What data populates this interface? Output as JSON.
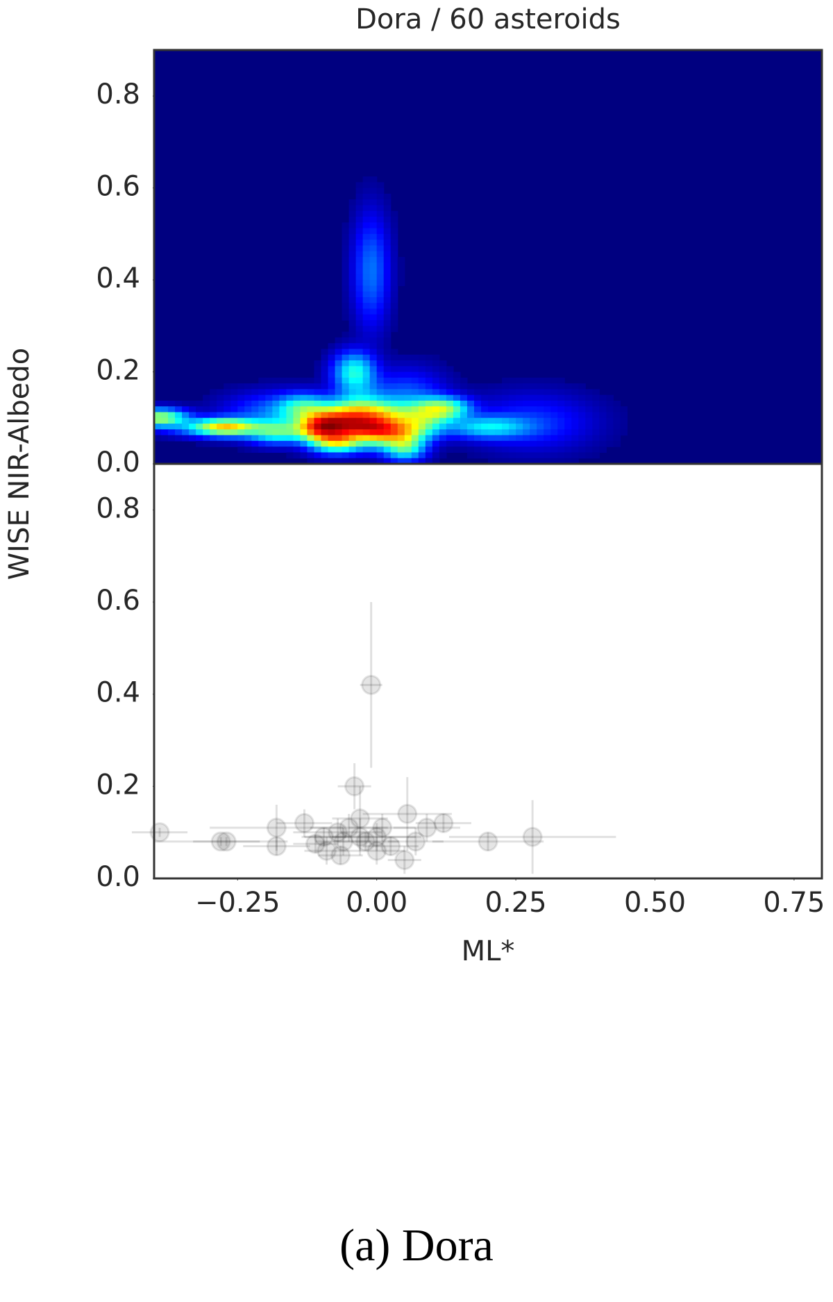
{
  "chart_data": [
    {
      "type": "density",
      "title": "Dora / 60 asteroids",
      "ylabel": "WISE NIR-Albedo",
      "colormap": "jet",
      "ylim": [
        0,
        0.9
      ],
      "yticks": [
        {
          "value": 0,
          "label": "0.0"
        },
        {
          "value": 0.2,
          "label": "0.2"
        },
        {
          "value": 0.4,
          "label": "0.4"
        },
        {
          "value": 0.6,
          "label": "0.6"
        },
        {
          "value": 0.8,
          "label": "0.8"
        }
      ]
    },
    {
      "type": "scatter",
      "xlabel": "ML*",
      "color": "#000000",
      "x": [
        -0.39,
        -0.28,
        -0.27,
        -0.18,
        -0.18,
        -0.13,
        -0.09,
        -0.07,
        -0.06,
        -0.04,
        -0.03,
        -0.02,
        -0.01,
        0.0,
        -0.03,
        0.01,
        0.05,
        0.055,
        0.07,
        0.09,
        0.12,
        0.2,
        0.28,
        -0.065,
        -0.05,
        -0.095,
        0.0,
        0.025,
        -0.11
      ],
      "y": [
        0.1,
        0.08,
        0.08,
        0.11,
        0.07,
        0.12,
        0.06,
        0.1,
        0.08,
        0.2,
        0.09,
        0.08,
        0.42,
        0.06,
        0.13,
        0.11,
        0.04,
        0.14,
        0.08,
        0.11,
        0.12,
        0.08,
        0.09,
        0.05,
        0.11,
        0.09,
        0.09,
        0.07,
        0.075
      ],
      "xerr": [
        0.05,
        0.12,
        0.06,
        0.12,
        0.06,
        0.05,
        0.04,
        0.08,
        0.05,
        0.03,
        0.1,
        0.06,
        0.02,
        0.05,
        0.05,
        0.06,
        0.03,
        0.08,
        0.05,
        0.06,
        0.05,
        0.1,
        0.15,
        0.04,
        0.07,
        0.04,
        0.08,
        0.05,
        0.04
      ],
      "yerr": [
        0.01,
        0.01,
        0.01,
        0.05,
        0.02,
        0.03,
        0.03,
        0.03,
        0.03,
        0.05,
        0.04,
        0.02,
        0.18,
        0.03,
        0.07,
        0.03,
        0.03,
        0.08,
        0.03,
        0.03,
        0.02,
        0.02,
        0.08,
        0.02,
        0.03,
        0.02,
        0.03,
        0.02,
        0.02
      ],
      "xlim": [
        -0.4,
        0.8
      ],
      "xticks": [
        {
          "value": -0.25,
          "label": "−0.25"
        },
        {
          "value": 0,
          "label": "0.00"
        },
        {
          "value": 0.25,
          "label": "0.25"
        },
        {
          "value": 0.5,
          "label": "0.50"
        },
        {
          "value": 0.75,
          "label": "0.75"
        }
      ],
      "ylim": [
        0,
        0.9
      ],
      "yticks": [
        {
          "value": 0,
          "label": "0.0"
        },
        {
          "value": 0.2,
          "label": "0.2"
        },
        {
          "value": 0.4,
          "label": "0.4"
        },
        {
          "value": 0.6,
          "label": "0.6"
        },
        {
          "value": 0.8,
          "label": "0.8"
        }
      ]
    }
  ],
  "caption": "(a) Dora"
}
